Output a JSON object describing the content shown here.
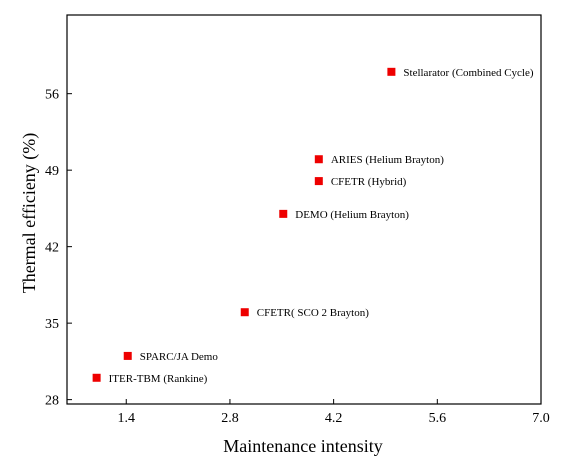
{
  "chart_data": {
    "type": "scatter",
    "title": "",
    "xlabel": "Maintenance intensity",
    "ylabel": "Thermal efficieny (%)",
    "xlim": [
      0.6,
      7.0
    ],
    "ylim": [
      27.6,
      63.2
    ],
    "xticks": [
      1.4,
      2.8,
      4.2,
      5.6,
      7.0
    ],
    "xtick_labels": [
      "1.4",
      "2.8",
      "4.2",
      "5.6",
      "7.0"
    ],
    "yticks": [
      28,
      35,
      42,
      49,
      56
    ],
    "ytick_labels": [
      "28",
      "35",
      "42",
      "49",
      "56"
    ],
    "grid": false,
    "marker_color": "#ee0000",
    "points": [
      {
        "x": 4.98,
        "y": 58.0,
        "label": "Stellarator (Combined Cycle)"
      },
      {
        "x": 4.0,
        "y": 50.0,
        "label": "ARIES (Helium Brayton)"
      },
      {
        "x": 4.0,
        "y": 48.0,
        "label": "CFETR (Hybrid)"
      },
      {
        "x": 3.52,
        "y": 45.0,
        "label": "DEMO (Helium Brayton)"
      },
      {
        "x": 3.0,
        "y": 36.0,
        "label": "CFETR( SCO 2 Brayton)"
      },
      {
        "x": 1.42,
        "y": 32.0,
        "label": "SPARC/JA Demo"
      },
      {
        "x": 1.0,
        "y": 30.0,
        "label": "ITER-TBM (Rankine)"
      }
    ]
  }
}
